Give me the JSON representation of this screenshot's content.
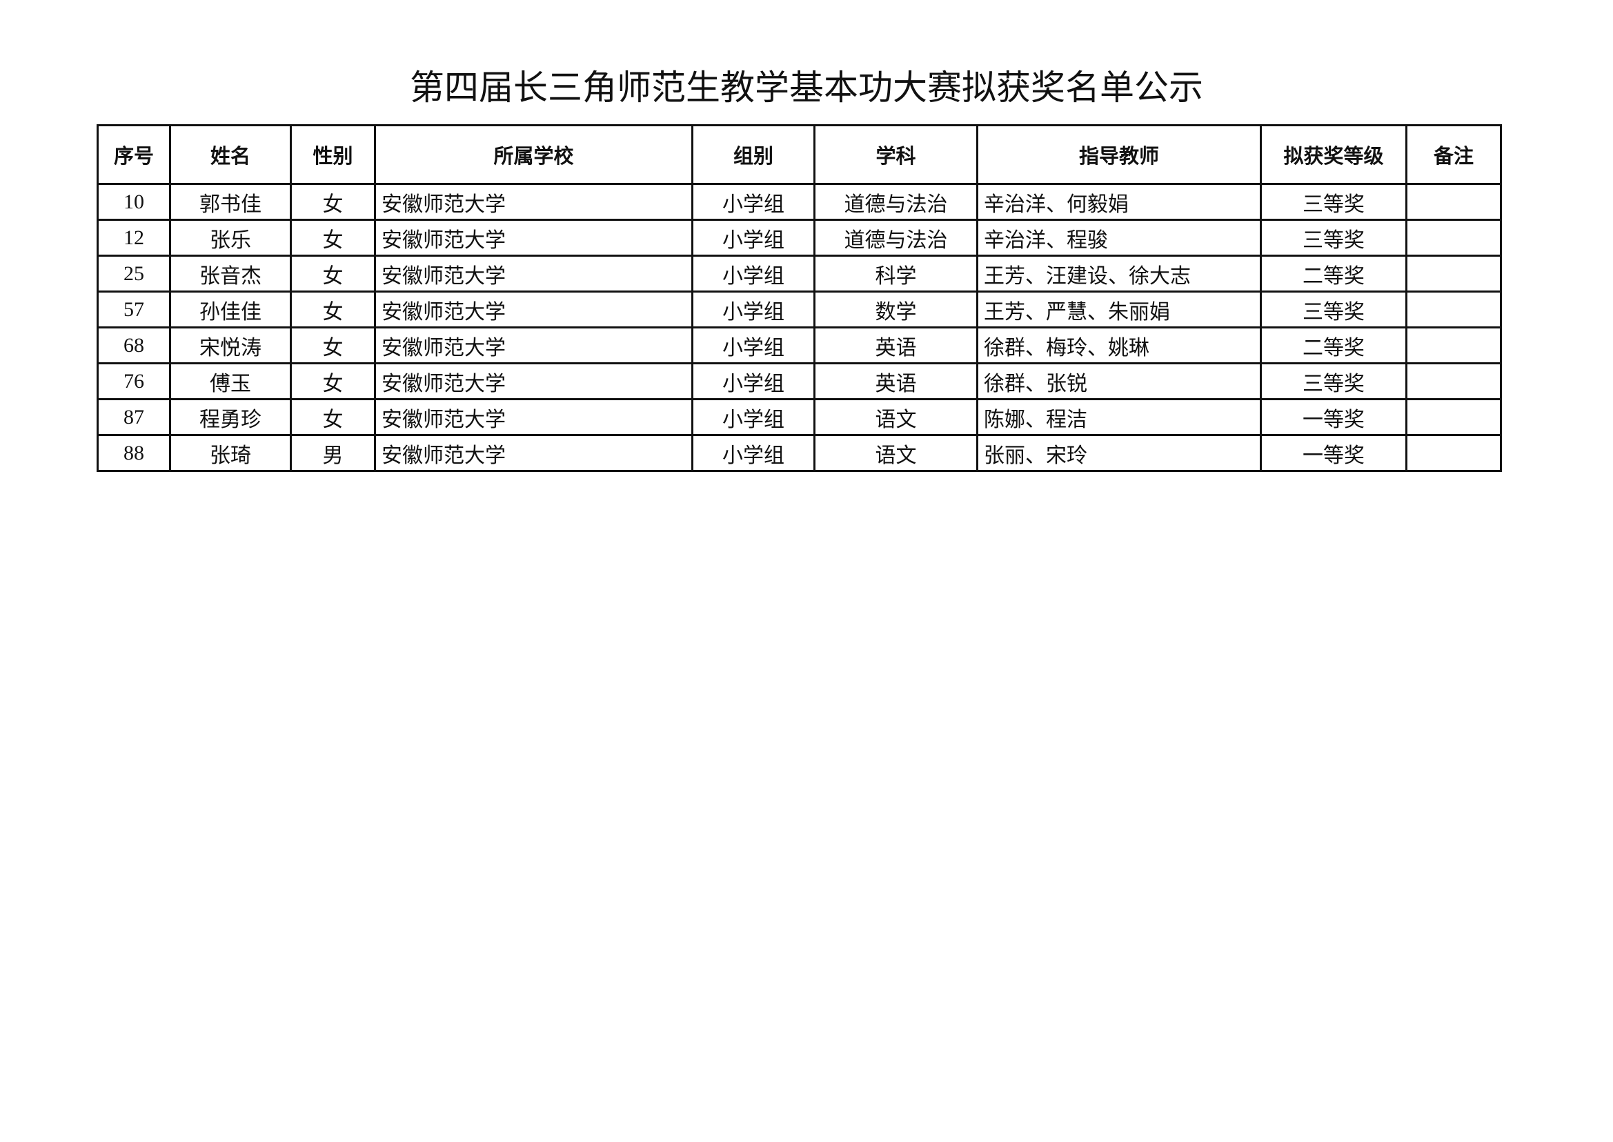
{
  "title": "第四届长三角师范生教学基本功大赛拟获奖名单公示",
  "table": {
    "headers": [
      "序号",
      "姓名",
      "性别",
      "所属学校",
      "组别",
      "学科",
      "指导教师",
      "拟获奖等级",
      "备注"
    ],
    "rows": [
      [
        "10",
        "郭书佳",
        "女",
        "安徽师范大学",
        "小学组",
        "道德与法治",
        "辛治洋、何毅娟",
        "三等奖",
        ""
      ],
      [
        "12",
        "张乐",
        "女",
        "安徽师范大学",
        "小学组",
        "道德与法治",
        "辛治洋、程骏",
        "三等奖",
        ""
      ],
      [
        "25",
        "张音杰",
        "女",
        "安徽师范大学",
        "小学组",
        "科学",
        "王芳、汪建设、徐大志",
        "二等奖",
        ""
      ],
      [
        "57",
        "孙佳佳",
        "女",
        "安徽师范大学",
        "小学组",
        "数学",
        "王芳、严慧、朱丽娟",
        "三等奖",
        ""
      ],
      [
        "68",
        "宋悦涛",
        "女",
        "安徽师范大学",
        "小学组",
        "英语",
        "徐群、梅玲、姚琳",
        "二等奖",
        ""
      ],
      [
        "76",
        "傅玉",
        "女",
        "安徽师范大学",
        "小学组",
        "英语",
        "徐群、张锐",
        "三等奖",
        ""
      ],
      [
        "87",
        "程勇珍",
        "女",
        "安徽师范大学",
        "小学组",
        "语文",
        "陈娜、程洁",
        "一等奖",
        ""
      ],
      [
        "88",
        "张琦",
        "男",
        "安徽师范大学",
        "小学组",
        "语文",
        "张丽、宋玲",
        "一等奖",
        ""
      ]
    ]
  }
}
